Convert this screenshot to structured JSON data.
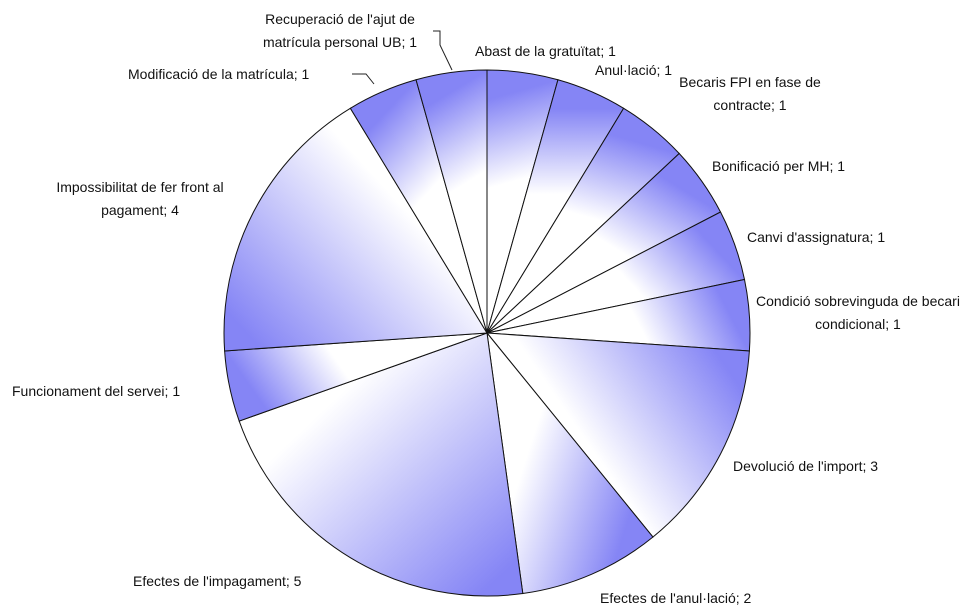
{
  "chart_data": {
    "type": "pie",
    "categories": [
      "Abast de la gratuïtat",
      "Anul·lació",
      "Becaris FPI en fase de contracte",
      "Bonificació per MH",
      "Canvi d'assignatura",
      "Condició sobrevinguda de becari condicional",
      "Devolució de l'import",
      "Efectes de l'anul·lació",
      "Efectes de l'impagament",
      "Funcionament del servei",
      "Impossibilitat de fer front al pagament",
      "Modificació de la matrícula",
      "Recuperació de l'ajut de matrícula personal UB"
    ],
    "values": [
      1,
      1,
      1,
      1,
      1,
      1,
      3,
      2,
      5,
      1,
      4,
      1,
      1
    ],
    "label_separator": "; ",
    "color": "#8585f5"
  }
}
